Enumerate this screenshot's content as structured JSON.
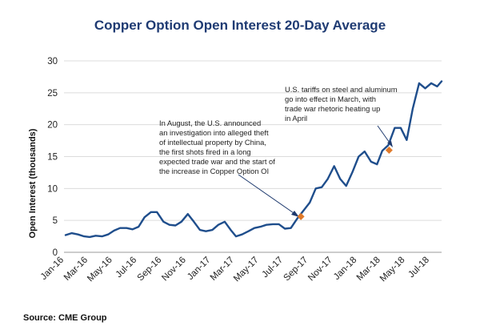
{
  "chart_data": {
    "type": "line",
    "title": "Copper Option Open Interest 20-Day Average",
    "ylabel": "Open Interest (thousands)",
    "xlabel": "",
    "ylim": [
      0,
      30
    ],
    "yticks": [
      0,
      5,
      10,
      15,
      20,
      25,
      30
    ],
    "xlim": [
      "2016-01-01",
      "2018-07-31"
    ],
    "xtick_labels": [
      "Jan-16",
      "Mar-16",
      "May-16",
      "Jul-16",
      "Sep-16",
      "Nov-16",
      "Jan-17",
      "Mar-17",
      "May-17",
      "Jul-17",
      "Sep-17",
      "Nov-17",
      "Jan-18",
      "Mar-18",
      "May-18",
      "Jul-18"
    ],
    "grid": "horizontal",
    "line_color": "#1f4e8c",
    "series": [
      {
        "x": [
          "2016-01-05",
          "2016-01-20",
          "2016-02-05",
          "2016-02-20",
          "2016-03-05",
          "2016-03-20",
          "2016-04-05",
          "2016-04-20",
          "2016-05-05",
          "2016-05-20",
          "2016-06-05",
          "2016-06-20",
          "2016-07-05",
          "2016-07-20",
          "2016-08-05",
          "2016-08-20",
          "2016-09-05",
          "2016-09-20",
          "2016-10-05",
          "2016-10-20",
          "2016-11-05",
          "2016-11-20",
          "2016-12-05",
          "2016-12-20",
          "2017-01-05",
          "2017-01-20",
          "2017-02-05",
          "2017-02-20",
          "2017-03-05",
          "2017-03-20",
          "2017-04-05",
          "2017-04-20",
          "2017-05-05",
          "2017-05-20",
          "2017-06-05",
          "2017-06-20",
          "2017-07-05",
          "2017-07-20",
          "2017-08-05",
          "2017-08-20",
          "2017-09-05",
          "2017-09-20",
          "2017-10-05",
          "2017-10-20",
          "2017-11-05",
          "2017-11-20",
          "2017-12-05",
          "2017-12-20",
          "2018-01-05",
          "2018-01-20",
          "2018-02-05",
          "2018-02-20",
          "2018-03-05",
          "2018-03-20",
          "2018-04-05",
          "2018-04-20",
          "2018-05-05",
          "2018-05-20",
          "2018-06-05",
          "2018-06-20",
          "2018-07-05",
          "2018-07-20",
          "2018-07-31"
        ],
        "values": [
          2.7,
          3.0,
          2.8,
          2.5,
          2.4,
          2.6,
          2.5,
          2.8,
          3.4,
          3.8,
          3.8,
          3.6,
          4.0,
          5.5,
          6.3,
          6.3,
          4.8,
          4.3,
          4.2,
          4.8,
          6.0,
          4.8,
          3.5,
          3.3,
          3.5,
          4.3,
          4.8,
          3.5,
          2.5,
          2.8,
          3.3,
          3.8,
          4.0,
          4.3,
          4.4,
          4.4,
          3.7,
          3.8,
          5.3,
          6.5,
          7.8,
          10.0,
          10.2,
          11.5,
          13.5,
          11.5,
          10.4,
          12.5,
          15.0,
          15.8,
          14.2,
          13.8,
          15.9,
          16.8,
          19.5,
          19.5,
          17.6,
          22.5,
          26.5,
          25.7,
          26.5,
          26.0,
          26.8
        ]
      }
    ],
    "highlights": [
      {
        "x": "2017-08-14",
        "y": 5.6,
        "color": "#e07a2a"
      },
      {
        "x": "2018-03-22",
        "y": 16.0,
        "color": "#e07a2a"
      }
    ],
    "annotations": [
      {
        "lines": [
          "In August, the U.S. announced",
          "an investigation into alleged theft",
          "of intellectual property by China,",
          "the first shots fired in a long",
          "expected trade war and the start of",
          "the increase in Copper Option OI"
        ]
      },
      {
        "lines": [
          "U.S. tariffs on steel and aluminum",
          "go into effect in March, with",
          "trade war rhetoric heating up",
          "in April"
        ]
      }
    ],
    "source": "Source: CME Group"
  }
}
